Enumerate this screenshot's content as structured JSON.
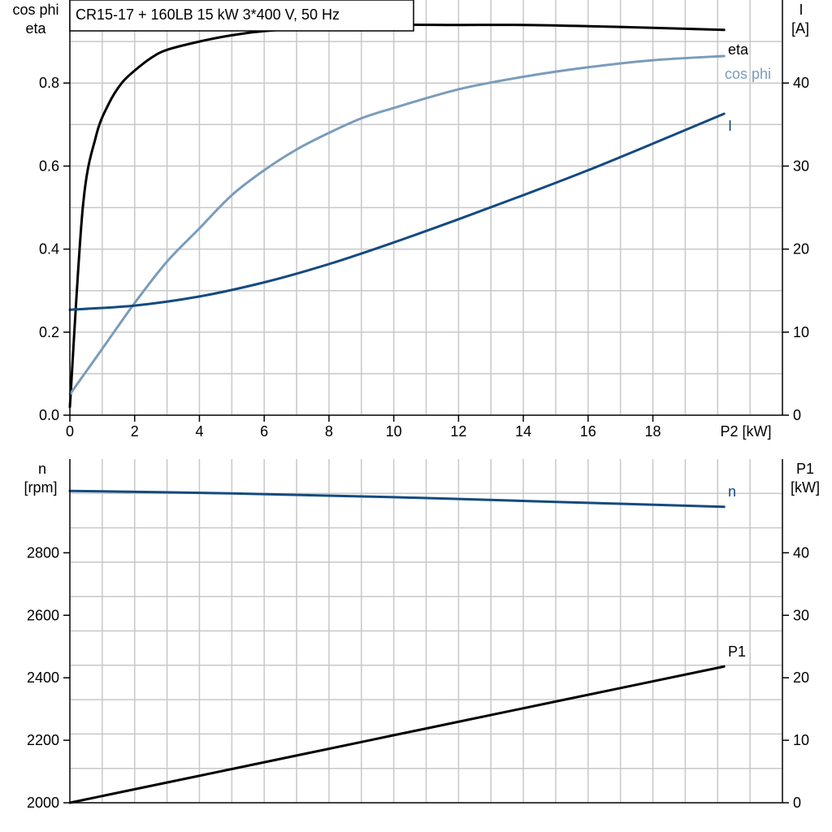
{
  "title": "CR15-17 + 160LB   15 kW   3*400 V, 50 Hz",
  "colors": {
    "black": "#000000",
    "light_blue": "#7a9cbb",
    "dark_blue": "#144a80",
    "grid": "#c8c8c8"
  },
  "chart_data": [
    {
      "type": "line",
      "x_axis": {
        "label": "P2 [kW]",
        "ticks": [
          0,
          2,
          4,
          6,
          8,
          10,
          12,
          14,
          16,
          18
        ],
        "range": [
          0,
          22
        ]
      },
      "left_axis": {
        "label_line1": "cos phi",
        "label_line2": "eta",
        "ticks": [
          "0.0",
          "0.2",
          "0.4",
          "0.6",
          "0.8"
        ],
        "range": [
          0,
          1.0
        ]
      },
      "right_axis": {
        "label_line1": "I",
        "label_line2": "[A]",
        "ticks": [
          "0",
          "10",
          "20",
          "30",
          "40"
        ],
        "range": [
          0,
          50
        ]
      },
      "grid": true,
      "series": [
        {
          "name": "eta",
          "axis": "left",
          "color": "#000000",
          "x": [
            0,
            0.4,
            0.8,
            1.2,
            1.6,
            2.0,
            2.5,
            3.0,
            4.0,
            5.0,
            6.0,
            8.0,
            10.0,
            12.0,
            14.0,
            16.0,
            18.0,
            20.2
          ],
          "y": [
            0.02,
            0.5,
            0.67,
            0.75,
            0.8,
            0.83,
            0.86,
            0.88,
            0.9,
            0.915,
            0.925,
            0.935,
            0.94,
            0.94,
            0.94,
            0.937,
            0.933,
            0.928
          ]
        },
        {
          "name": "cos phi",
          "axis": "left",
          "color": "#7a9cbb",
          "x": [
            0,
            1,
            2,
            3,
            4,
            5,
            6,
            7,
            8,
            9,
            10,
            12,
            14,
            16,
            18,
            20.2
          ],
          "y": [
            0.05,
            0.16,
            0.27,
            0.37,
            0.45,
            0.53,
            0.59,
            0.64,
            0.68,
            0.715,
            0.74,
            0.785,
            0.815,
            0.838,
            0.855,
            0.865
          ]
        },
        {
          "name": "I",
          "axis": "right",
          "color": "#144a80",
          "x": [
            0,
            2,
            4,
            6,
            8,
            10,
            12,
            14,
            16,
            18,
            20.2
          ],
          "y": [
            12.7,
            13.2,
            14.3,
            16.0,
            18.2,
            20.8,
            23.6,
            26.5,
            29.5,
            32.7,
            36.3
          ]
        }
      ]
    },
    {
      "type": "line",
      "x_axis": {
        "range": [
          0,
          22
        ]
      },
      "left_axis": {
        "label_line1": "n",
        "label_line2": "[rpm]",
        "ticks": [
          "2000",
          "2200",
          "2400",
          "2600",
          "2800"
        ],
        "range": [
          2000,
          3100
        ]
      },
      "right_axis": {
        "label_line1": "P1",
        "label_line2": "[kW]",
        "ticks": [
          "0",
          "10",
          "20",
          "30",
          "40"
        ],
        "range": [
          0,
          55
        ]
      },
      "grid": true,
      "series": [
        {
          "name": "n",
          "axis": "left",
          "color": "#144a80",
          "x": [
            0,
            5,
            10,
            15,
            20.2
          ],
          "y": [
            2998,
            2990,
            2978,
            2963,
            2947
          ]
        },
        {
          "name": "P1",
          "axis": "right",
          "color": "#000000",
          "x": [
            0,
            5,
            10,
            15,
            20.2
          ],
          "y": [
            0.0,
            5.4,
            10.8,
            16.2,
            21.8
          ]
        }
      ]
    }
  ]
}
